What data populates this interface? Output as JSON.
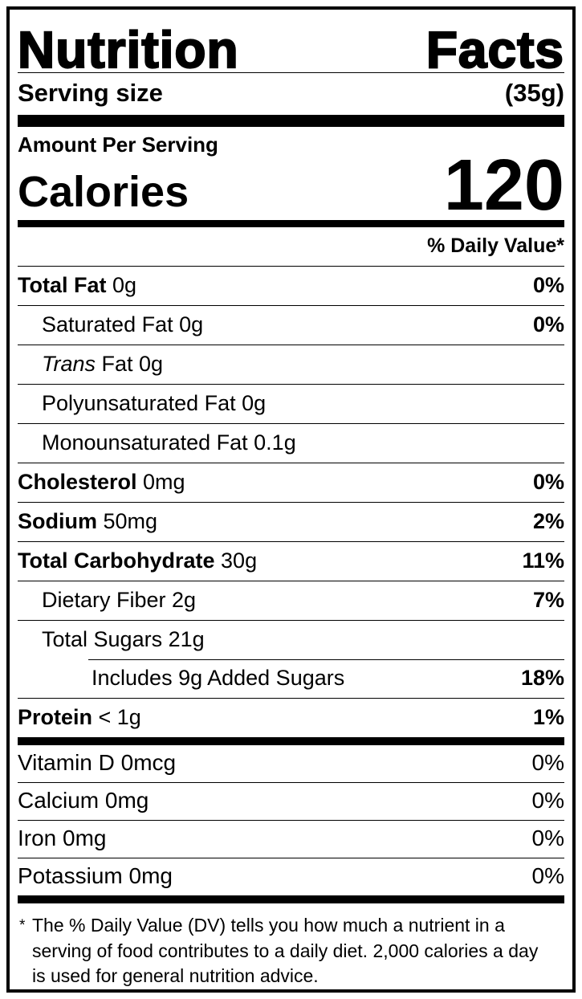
{
  "title": "Nutrition Facts",
  "serving": {
    "label": "Serving size",
    "size": "(35g)"
  },
  "calories": {
    "heading": "Amount Per Serving",
    "label": "Calories",
    "value": "120"
  },
  "daily_value_header": "% Daily Value*",
  "nutrient_rows": [
    {
      "indent": 0,
      "segments": [
        {
          "text": "Total Fat",
          "bold": true
        },
        {
          "text": " 0g"
        }
      ],
      "dv": "0%",
      "dv_bold": true
    },
    {
      "indent": 1,
      "segments": [
        {
          "text": "Saturated Fat 0g"
        }
      ],
      "dv": "0%",
      "dv_bold": true
    },
    {
      "indent": 1,
      "segments": [
        {
          "text": "Trans",
          "italic": true
        },
        {
          "text": " Fat 0g"
        }
      ],
      "dv": "",
      "dv_bold": false
    },
    {
      "indent": 1,
      "segments": [
        {
          "text": "Polyunsaturated Fat 0g"
        }
      ],
      "dv": "",
      "dv_bold": false
    },
    {
      "indent": 1,
      "segments": [
        {
          "text": "Monounsaturated Fat 0.1g"
        }
      ],
      "dv": "",
      "dv_bold": false
    },
    {
      "indent": 0,
      "segments": [
        {
          "text": "Cholesterol",
          "bold": true
        },
        {
          "text": " 0mg"
        }
      ],
      "dv": "0%",
      "dv_bold": true
    },
    {
      "indent": 0,
      "segments": [
        {
          "text": "Sodium",
          "bold": true
        },
        {
          "text": " 50mg"
        }
      ],
      "dv": "2%",
      "dv_bold": true
    },
    {
      "indent": 0,
      "segments": [
        {
          "text": "Total Carbohydrate",
          "bold": true
        },
        {
          "text": " 30g"
        }
      ],
      "dv": "11%",
      "dv_bold": true
    },
    {
      "indent": 1,
      "segments": [
        {
          "text": "Dietary Fiber 2g"
        }
      ],
      "dv": "7%",
      "dv_bold": true
    },
    {
      "indent": 1,
      "segments": [
        {
          "text": "Total Sugars 21g"
        }
      ],
      "dv": "",
      "dv_bold": false
    },
    {
      "indent": 2,
      "partial_divider": true,
      "segments": [
        {
          "text": "Includes 9g Added Sugars"
        }
      ],
      "dv": "18%",
      "dv_bold": true
    },
    {
      "indent": 0,
      "segments": [
        {
          "text": "Protein",
          "bold": true
        },
        {
          "text": " < 1g"
        }
      ],
      "dv": "1%",
      "dv_bold": true
    }
  ],
  "vitamin_rows": [
    {
      "label": "Vitamin D 0mcg",
      "dv": "0%"
    },
    {
      "label": "Calcium 0mg",
      "dv": "0%"
    },
    {
      "label": "Iron 0mg",
      "dv": "0%"
    },
    {
      "label": "Potassium 0mg",
      "dv": "0%"
    }
  ],
  "footnote": {
    "marker": "*",
    "text": "The % Daily Value (DV) tells you how much a nutrient in a serving of food contributes to a daily diet. 2,000 calories a day is used for general nutrition advice."
  },
  "colors": {
    "ink": "#000000",
    "background": "#ffffff"
  }
}
